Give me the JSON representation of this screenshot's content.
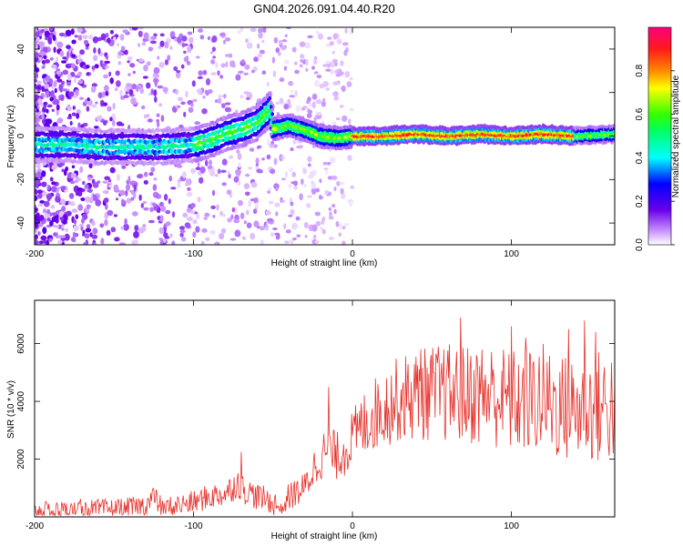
{
  "chart_data": [
    {
      "type": "heatmap",
      "title": "GN04.2026.091.04.40.R20",
      "xlabel": "Height of straight line (km)",
      "ylabel": "Frequency (Hz)",
      "xlim": [
        -200,
        165
      ],
      "ylim": [
        -50,
        50
      ],
      "xticks": [
        "-200",
        "-100",
        "0",
        "100"
      ],
      "xtick_values": [
        -200,
        -100,
        0,
        100
      ],
      "yticks": [
        "-40",
        "-20",
        "0",
        "20",
        "40"
      ],
      "ytick_values": [
        -40,
        -20,
        0,
        20,
        40
      ],
      "colorbar": {
        "label": "Normalized spectral amplitude",
        "ticks": [
          "0.0",
          "0.2",
          "0.4",
          "0.6",
          "0.8"
        ],
        "tick_values": [
          0.0,
          0.2,
          0.4,
          0.6,
          0.8
        ],
        "range": [
          0,
          1
        ]
      },
      "ridge": {
        "x": [
          -200,
          -180,
          -160,
          -140,
          -120,
          -100,
          -90,
          -80,
          -70,
          -60,
          -55,
          -52,
          -50,
          -40,
          -30,
          -20,
          -10,
          0,
          20,
          40,
          60,
          80,
          100,
          120,
          140,
          165
        ],
        "y": [
          -4,
          -4,
          -5,
          -5,
          -5,
          -4,
          -2,
          1,
          3,
          6,
          10,
          12,
          3,
          5,
          3,
          0,
          -1,
          0,
          0,
          1,
          0,
          1,
          0,
          1,
          0,
          1
        ]
      }
    },
    {
      "type": "line",
      "xlabel": "Height of straight line (km)",
      "ylabel": "SNR (10 * v/v)",
      "xlim": [
        -200,
        165
      ],
      "ylim": [
        0,
        7500
      ],
      "xticks": [
        "-200",
        "-100",
        "0",
        "100"
      ],
      "xtick_values": [
        -200,
        -100,
        0,
        100
      ],
      "yticks": [
        "2000",
        "4000",
        "6000"
      ],
      "ytick_values": [
        2000,
        4000,
        6000
      ],
      "series": [
        {
          "name": "SNR",
          "color": "#e8302a",
          "x": [
            -200,
            -190,
            -180,
            -170,
            -160,
            -150,
            -140,
            -130,
            -125,
            -120,
            -110,
            -100,
            -90,
            -80,
            -72,
            -70,
            -60,
            -50,
            -45,
            -40,
            -30,
            -25,
            -20,
            -15,
            -10,
            -5,
            0,
            10,
            20,
            30,
            40,
            50,
            60,
            70,
            80,
            90,
            100,
            110,
            120,
            130,
            140,
            150,
            160,
            165
          ],
          "y": [
            150,
            200,
            200,
            250,
            250,
            280,
            300,
            400,
            700,
            300,
            400,
            500,
            700,
            800,
            1200,
            1000,
            700,
            500,
            300,
            700,
            1000,
            1600,
            2100,
            2300,
            2100,
            2300,
            2700,
            3400,
            3800,
            4100,
            4200,
            4300,
            4300,
            4200,
            4300,
            4200,
            4000,
            4000,
            4100,
            3800,
            3700,
            3800,
            3800,
            3900
          ],
          "peaks": {
            "x": [
              -125,
              -70,
              -15,
              43,
              68,
              100,
              109,
              136,
              146,
              153
            ],
            "y": [
              950,
              2250,
              4500,
              5800,
              6900,
              6600,
              6200,
              6500,
              6800,
              6400
            ]
          }
        }
      ]
    }
  ]
}
